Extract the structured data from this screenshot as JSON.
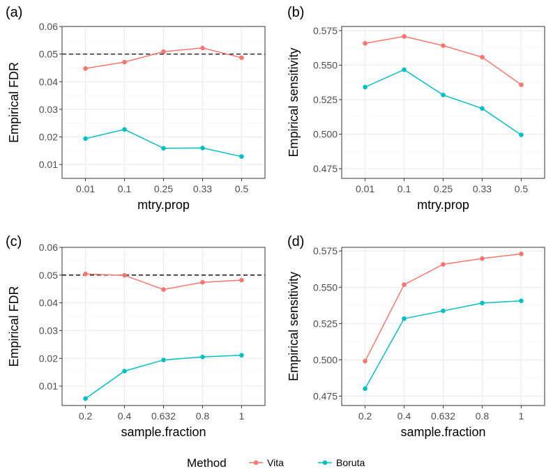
{
  "colors": {
    "Vita": "#F8766D",
    "Boruta": "#00BFC4",
    "reference": "#000000"
  },
  "legend": {
    "title": "Method",
    "items": [
      "Vita",
      "Boruta"
    ]
  },
  "chart_data": [
    {
      "panel": "(a)",
      "type": "line",
      "categories": [
        "0.01",
        "0.1",
        "0.25",
        "0.33",
        "0.5"
      ],
      "xlabel": "mtry.prop",
      "ylabel": "Empirical FDR",
      "ylim": [
        0.005,
        0.06
      ],
      "yticks": [
        "0.01",
        "0.02",
        "0.03",
        "0.04",
        "0.05",
        "0.06"
      ],
      "reference_line": 0.05,
      "series": [
        {
          "name": "Vita",
          "values": [
            0.0448,
            0.0471,
            0.0509,
            0.0522,
            0.0487
          ]
        },
        {
          "name": "Boruta",
          "values": [
            0.0194,
            0.0227,
            0.0159,
            0.016,
            0.0129
          ]
        }
      ]
    },
    {
      "panel": "(b)",
      "type": "line",
      "categories": [
        "0.01",
        "0.1",
        "0.25",
        "0.33",
        "0.5"
      ],
      "xlabel": "mtry.prop",
      "ylabel": "Empirical sensitivity",
      "ylim": [
        0.468,
        0.578
      ],
      "yticks": [
        "0.475",
        "0.500",
        "0.525",
        "0.550",
        "0.575"
      ],
      "reference_line": null,
      "series": [
        {
          "name": "Vita",
          "values": [
            0.5658,
            0.5708,
            0.5641,
            0.5558,
            0.5358
          ]
        },
        {
          "name": "Boruta",
          "values": [
            0.5341,
            0.5467,
            0.5284,
            0.5186,
            0.4995
          ]
        }
      ]
    },
    {
      "panel": "(c)",
      "type": "line",
      "categories": [
        "0.2",
        "0.4",
        "0.632",
        "0.8",
        "1"
      ],
      "xlabel": "sample.fraction",
      "ylabel": "Empirical FDR",
      "ylim": [
        0.003,
        0.06
      ],
      "yticks": [
        "0.01",
        "0.02",
        "0.03",
        "0.04",
        "0.05",
        "0.06"
      ],
      "reference_line": 0.05,
      "series": [
        {
          "name": "Vita",
          "values": [
            0.0504,
            0.0499,
            0.0448,
            0.0474,
            0.0482
          ]
        },
        {
          "name": "Boruta",
          "values": [
            0.0055,
            0.0154,
            0.0194,
            0.0205,
            0.0211
          ]
        }
      ]
    },
    {
      "panel": "(d)",
      "type": "line",
      "categories": [
        "0.2",
        "0.4",
        "0.632",
        "0.8",
        "1"
      ],
      "xlabel": "sample.fraction",
      "ylabel": "Empirical sensitivity",
      "ylim": [
        0.4685,
        0.5775
      ],
      "yticks": [
        "0.475",
        "0.500",
        "0.525",
        "0.550",
        "0.575"
      ],
      "reference_line": null,
      "series": [
        {
          "name": "Vita",
          "values": [
            0.4991,
            0.5518,
            0.5658,
            0.5698,
            0.573
          ]
        },
        {
          "name": "Boruta",
          "values": [
            0.4801,
            0.5284,
            0.5337,
            0.5391,
            0.5406
          ]
        }
      ]
    }
  ]
}
